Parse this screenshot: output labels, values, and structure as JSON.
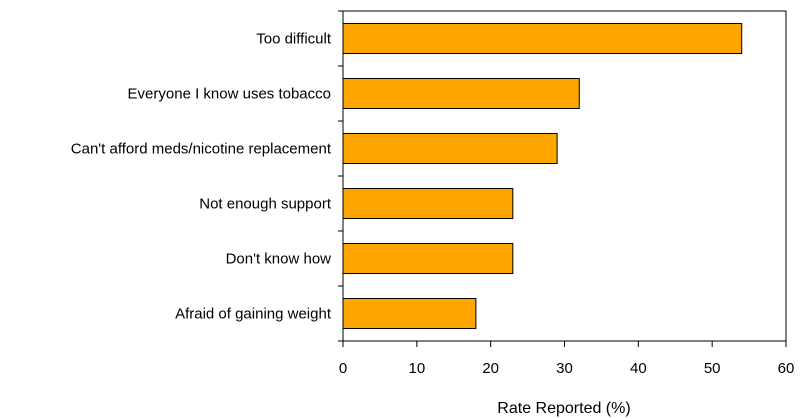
{
  "chart_data": {
    "type": "bar",
    "orientation": "horizontal",
    "categories": [
      "Too difficult",
      "Everyone I know uses tobacco",
      "Can't afford meds/nicotine replacement",
      "Not enough support",
      "Don't know how",
      "Afraid of gaining weight"
    ],
    "values": [
      54,
      32,
      29,
      23,
      23,
      18
    ],
    "xlabel": "Rate Reported (%)",
    "ylabel": "",
    "xlim": [
      0,
      60
    ],
    "xticks": [
      0,
      10,
      20,
      30,
      40,
      50,
      60
    ],
    "grid": false,
    "legend": "none",
    "bar_color": "#FFA500"
  }
}
